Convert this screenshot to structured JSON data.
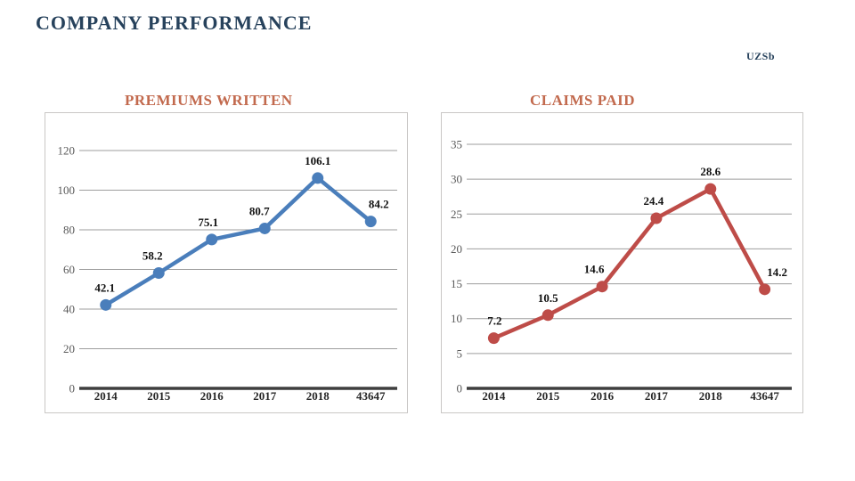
{
  "page": {
    "title": "COMPANY PERFORMANCE",
    "unit_label": "UZSb",
    "title_color": "#27425C",
    "heading_color": "#C26A4E",
    "background_color": "#FFFFFF"
  },
  "chart_data": [
    {
      "type": "line",
      "title": "PREMIUMS WRITTEN",
      "categories": [
        "2014",
        "2015",
        "2016",
        "2017",
        "2018",
        "43647"
      ],
      "values": [
        42.1,
        58.2,
        75.1,
        80.7,
        106.1,
        84.2
      ],
      "data_labels": [
        "42.1",
        "58.2",
        "75.1",
        "80.7",
        "106.1",
        "84.2"
      ],
      "ylim": [
        0,
        120
      ],
      "ystep": 20,
      "line_color": "#4A7EBB",
      "grid": true,
      "legend": "none",
      "xlabel": "",
      "ylabel": ""
    },
    {
      "type": "line",
      "title": "CLAIMS PAID",
      "categories": [
        "2014",
        "2015",
        "2016",
        "2017",
        "2018",
        "43647"
      ],
      "values": [
        7.2,
        10.5,
        14.6,
        24.4,
        28.6,
        14.2
      ],
      "data_labels": [
        "7.2",
        "10.5",
        "14.6",
        "24.4",
        "28.6",
        "14.2"
      ],
      "ylim": [
        0,
        35
      ],
      "ystep": 5,
      "line_color": "#BE4C48",
      "grid": true,
      "legend": "none",
      "xlabel": "",
      "ylabel": ""
    }
  ]
}
